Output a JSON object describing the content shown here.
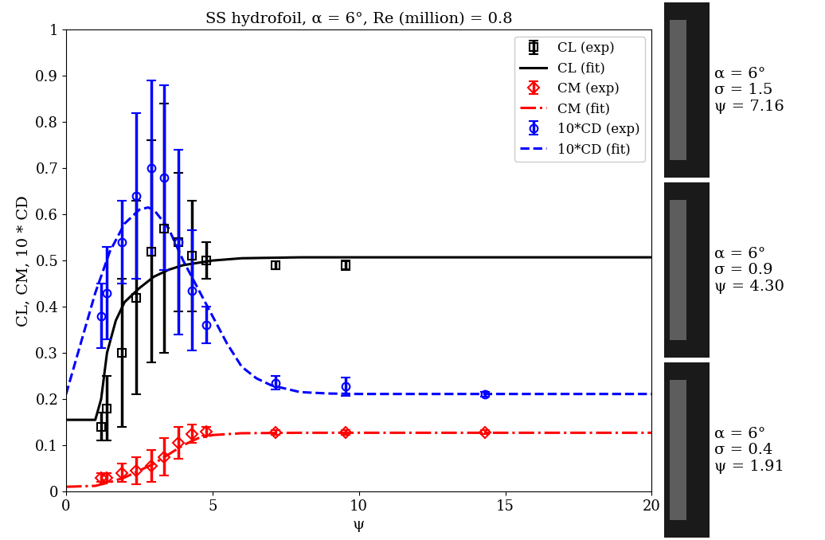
{
  "chart_data": {
    "type": "line",
    "title": "SS hydrofoil, α = 6°, Re (million) = 0.8",
    "x_label": "ψ",
    "y_label": "CL, CM, 10 * CD",
    "xlim": [
      0,
      20
    ],
    "ylim": [
      0,
      1
    ],
    "xticks": [
      0,
      5,
      10,
      15,
      20
    ],
    "yticks": [
      0,
      0.1,
      0.2,
      0.3,
      0.4,
      0.5,
      0.6,
      0.7,
      0.8,
      0.9,
      1
    ],
    "grid": false,
    "legend": "upper right",
    "series": [
      {
        "name": "CL (exp)",
        "type": "errorbar",
        "color": "#000000",
        "marker": "square",
        "line_style": "none",
        "x": [
          1.2,
          1.4,
          1.9,
          2.4,
          2.9,
          3.35,
          3.85,
          4.3,
          4.8,
          7.16,
          9.55
        ],
        "values": [
          0.14,
          0.18,
          0.3,
          0.42,
          0.52,
          0.57,
          0.54,
          0.51,
          0.5,
          0.49,
          0.49
        ],
        "error": [
          0.03,
          0.07,
          0.16,
          0.21,
          0.24,
          0.27,
          0.15,
          0.12,
          0.04,
          0.008,
          0.01
        ]
      },
      {
        "name": "CL (fit)",
        "type": "line",
        "color": "#000000",
        "line_style": "solid",
        "x": [
          0,
          1,
          1.2,
          1.4,
          1.7,
          2.0,
          2.5,
          3,
          3.5,
          4,
          5,
          6,
          8,
          20
        ],
        "values": [
          0.155,
          0.155,
          0.2,
          0.3,
          0.37,
          0.41,
          0.44,
          0.465,
          0.48,
          0.49,
          0.5,
          0.505,
          0.507,
          0.507
        ]
      },
      {
        "name": "CM (exp)",
        "type": "errorbar",
        "color": "#ff0000",
        "marker": "diamond",
        "line_style": "none",
        "x": [
          1.2,
          1.4,
          1.9,
          2.4,
          2.9,
          3.35,
          3.85,
          4.3,
          4.8,
          7.16,
          9.55,
          14.3
        ],
        "values": [
          0.03,
          0.03,
          0.04,
          0.045,
          0.055,
          0.075,
          0.105,
          0.125,
          0.13,
          0.128,
          0.128,
          0.128
        ],
        "error": [
          0.01,
          0.01,
          0.02,
          0.03,
          0.035,
          0.04,
          0.035,
          0.02,
          0.01,
          0.005,
          0.005,
          0.004
        ]
      },
      {
        "name": "CM (fit)",
        "type": "line",
        "color": "#ff0000",
        "line_style": "dashdot",
        "x": [
          0,
          1,
          1.5,
          2,
          2.5,
          3,
          3.5,
          4,
          4.5,
          5,
          6,
          8,
          20
        ],
        "values": [
          0.01,
          0.012,
          0.02,
          0.03,
          0.045,
          0.06,
          0.08,
          0.1,
          0.115,
          0.122,
          0.126,
          0.127,
          0.127
        ]
      },
      {
        "name": "10*CD (exp)",
        "type": "errorbar",
        "color": "#0000ff",
        "marker": "circle",
        "line_style": "none",
        "x": [
          1.2,
          1.4,
          1.9,
          2.4,
          2.9,
          3.35,
          3.85,
          4.3,
          4.8,
          7.16,
          9.55,
          14.3
        ],
        "values": [
          0.38,
          0.43,
          0.54,
          0.64,
          0.7,
          0.68,
          0.54,
          0.435,
          0.36,
          0.235,
          0.227,
          0.21
        ],
        "error": [
          0.07,
          0.1,
          0.09,
          0.18,
          0.19,
          0.2,
          0.2,
          0.13,
          0.04,
          0.015,
          0.02,
          0.005
        ]
      },
      {
        "name": "10*CD (fit)",
        "type": "line",
        "color": "#0000ff",
        "line_style": "dashed",
        "x": [
          0,
          0.5,
          1,
          1.5,
          2,
          2.5,
          2.8,
          3,
          3.5,
          4,
          4.5,
          5,
          5.5,
          6,
          6.5,
          7,
          8,
          9,
          10,
          20
        ],
        "values": [
          0.21,
          0.32,
          0.43,
          0.52,
          0.58,
          0.61,
          0.615,
          0.61,
          0.57,
          0.5,
          0.44,
          0.38,
          0.32,
          0.27,
          0.245,
          0.23,
          0.215,
          0.212,
          0.211,
          0.211
        ]
      }
    ],
    "annotations": [
      "α = 6°\nσ = 1.5\nψ = 7.16",
      "α = 6°\nσ = 0.9\nψ = 4.30",
      "α = 6°\nσ = 0.4\nψ = 1.91"
    ]
  }
}
